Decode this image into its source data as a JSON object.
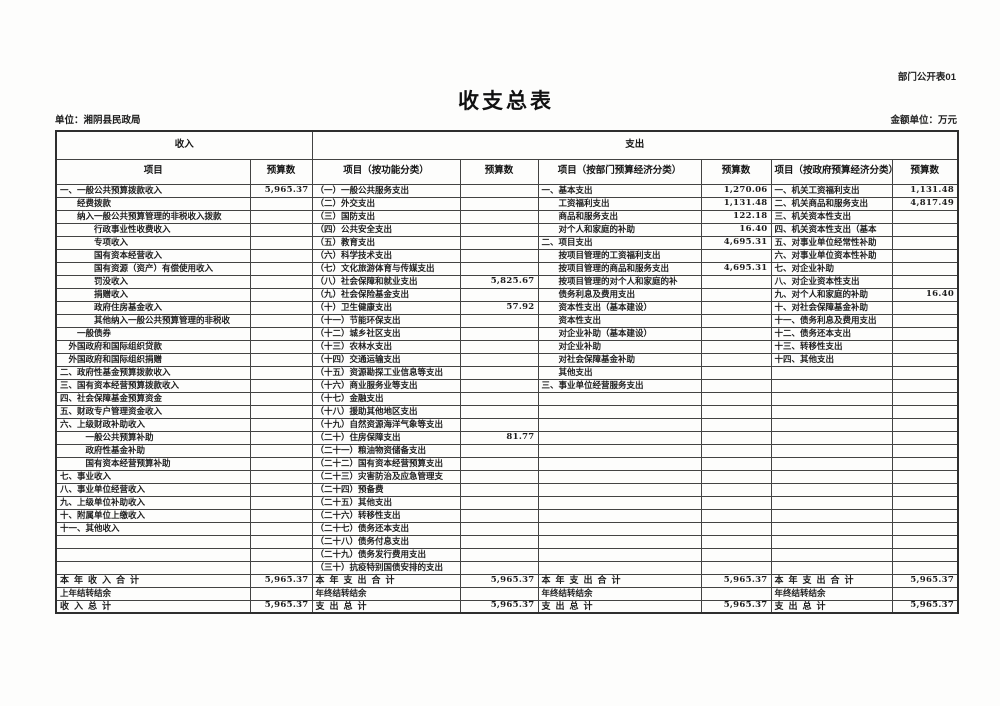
{
  "page": {
    "corner_note": "部门公开表01",
    "title": "收支总表",
    "unit_label": "单位：湘阴县民政局",
    "amount_unit_label": "金额单位：万元"
  },
  "table": {
    "group_headers": {
      "income": "收入",
      "expenditure": "支出"
    },
    "column_headers": [
      "项目",
      "预算数",
      "项目（按功能分类）",
      "预算数",
      "项目（按部门预算经济分类）",
      "预算数",
      "项目（按政府预算经济分类）",
      "预算数"
    ],
    "rows": [
      {
        "c": [
          "一、一般公共预算拨款收入",
          "5,965.37",
          "（一）一般公共服务支出",
          "",
          "一、基本支出",
          "1,270.06",
          "一、机关工资福利支出",
          "1,131.48"
        ]
      },
      {
        "c": [
          "　　经费拨款",
          "",
          "（二）外交支出",
          "",
          "　　工资福利支出",
          "1,131.48",
          "二、机关商品和服务支出",
          "4,817.49"
        ]
      },
      {
        "c": [
          "　　纳入一般公共预算管理的非税收入拨款",
          "",
          "（三）国防支出",
          "",
          "　　商品和服务支出",
          "122.18",
          "三、机关资本性支出",
          ""
        ]
      },
      {
        "c": [
          "　　　　行政事业性收费收入",
          "",
          "（四）公共安全支出",
          "",
          "　　对个人和家庭的补助",
          "16.40",
          "四、机关资本性支出（基本",
          ""
        ]
      },
      {
        "c": [
          "　　　　专项收入",
          "",
          "（五）教育支出",
          "",
          "二、项目支出",
          "4,695.31",
          "五、对事业单位经常性补助",
          ""
        ]
      },
      {
        "c": [
          "　　　　国有资本经营收入",
          "",
          "（六）科学技术支出",
          "",
          "　　按项目管理的工资福利支出",
          "",
          "六、对事业单位资本性补助",
          ""
        ]
      },
      {
        "c": [
          "　　　　国有资源（资产）有偿使用收入",
          "",
          "（七）文化旅游体育与传媒支出",
          "",
          "　　按项目管理的商品和服务支出",
          "4,695.31",
          "七、对企业补助",
          ""
        ]
      },
      {
        "c": [
          "　　　　罚没收入",
          "",
          "（八）社会保障和就业支出",
          "5,825.67",
          "　　按项目管理的对个人和家庭的补",
          "",
          "八、对企业资本性支出",
          ""
        ]
      },
      {
        "c": [
          "　　　　捐赠收入",
          "",
          "（九）社会保险基金支出",
          "",
          "　　债务利息及费用支出",
          "",
          "九、对个人和家庭的补助",
          "16.40"
        ]
      },
      {
        "c": [
          "　　　　政府住房基金收入",
          "",
          "（十）卫生健康支出",
          "57.92",
          "　　资本性支出（基本建设）",
          "",
          "十、对社会保障基金补助",
          ""
        ]
      },
      {
        "c": [
          "　　　　其他纳入一般公共预算管理的非税收",
          "",
          "（十一）节能环保支出",
          "",
          "　　资本性支出",
          "",
          "十一、债务利息及费用支出",
          ""
        ]
      },
      {
        "c": [
          "　　一般债券",
          "",
          "（十二）城乡社区支出",
          "",
          "　　对企业补助（基本建设）",
          "",
          "十二、债务还本支出",
          ""
        ]
      },
      {
        "c": [
          "　外国政府和国际组织贷款",
          "",
          "（十三）农林水支出",
          "",
          "　　对企业补助",
          "",
          "十三、转移性支出",
          ""
        ]
      },
      {
        "c": [
          "　外国政府和国际组织捐赠",
          "",
          "（十四）交通运输支出",
          "",
          "　　对社会保障基金补助",
          "",
          "十四、其他支出",
          ""
        ]
      },
      {
        "c": [
          "二、政府性基金预算拨款收入",
          "",
          "（十五）资源勘探工业信息等支出",
          "",
          "　　其他支出",
          "",
          "",
          ""
        ]
      },
      {
        "c": [
          "三、国有资本经营预算拨款收入",
          "",
          "（十六）商业服务业等支出",
          "",
          "三、事业单位经营服务支出",
          "",
          "",
          ""
        ]
      },
      {
        "c": [
          "四、社会保障基金预算资金",
          "",
          "（十七）金融支出",
          "",
          "",
          "",
          "",
          ""
        ]
      },
      {
        "c": [
          "五、财政专户管理资金收入",
          "",
          "（十八）援助其他地区支出",
          "",
          "",
          "",
          "",
          ""
        ]
      },
      {
        "c": [
          "六、上级财政补助收入",
          "",
          "（十九）自然资源海洋气象等支出",
          "",
          "",
          "",
          "",
          ""
        ]
      },
      {
        "c": [
          "　　　一般公共预算补助",
          "",
          "（二十）住房保障支出",
          "81.77",
          "",
          "",
          "",
          ""
        ]
      },
      {
        "c": [
          "　　　政府性基金补助",
          "",
          "（二十一）粮油物资储备支出",
          "",
          "",
          "",
          "",
          ""
        ]
      },
      {
        "c": [
          "　　　国有资本经营预算补助",
          "",
          "（二十二）国有资本经营预算支出",
          "",
          "",
          "",
          "",
          ""
        ]
      },
      {
        "c": [
          "七、事业收入",
          "",
          "（二十三）灾害防治及应急管理支",
          "",
          "",
          "",
          "",
          ""
        ]
      },
      {
        "c": [
          "八、事业单位经营收入",
          "",
          "（二十四）预备费",
          "",
          "",
          "",
          "",
          ""
        ]
      },
      {
        "c": [
          "九、上级单位补助收入",
          "",
          "（二十五）其他支出",
          "",
          "",
          "",
          "",
          ""
        ]
      },
      {
        "c": [
          "十、附属单位上缴收入",
          "",
          "（二十六）转移性支出",
          "",
          "",
          "",
          "",
          ""
        ]
      },
      {
        "c": [
          "十一、其他收入",
          "",
          "（二十七）债务还本支出",
          "",
          "",
          "",
          "",
          ""
        ]
      },
      {
        "c": [
          "",
          "",
          "（二十八）债务付息支出",
          "",
          "",
          "",
          "",
          ""
        ]
      },
      {
        "c": [
          "",
          "",
          "（二十九）债务发行费用支出",
          "",
          "",
          "",
          "",
          ""
        ]
      },
      {
        "c": [
          "",
          "",
          "（三十）抗疫特别国债安排的支出",
          "",
          "",
          "",
          "",
          ""
        ]
      },
      {
        "c": [
          "本年收入合计",
          "5,965.37",
          "本年支出合计",
          "5,965.37",
          "本年支出合计",
          "5,965.37",
          "本年支出合计",
          "5,965.37"
        ],
        "total": true
      },
      {
        "c": [
          "上年结转结余",
          "",
          "年终结转结余",
          "",
          "年终结转结余",
          "",
          "年终结转结余",
          ""
        ],
        "carry": true
      },
      {
        "c": [
          "收入总计",
          "5,965.37",
          "支出总计",
          "5,965.37",
          "支出总计",
          "5,965.37",
          "支出总计",
          "5,965.37"
        ],
        "total": true
      }
    ]
  }
}
